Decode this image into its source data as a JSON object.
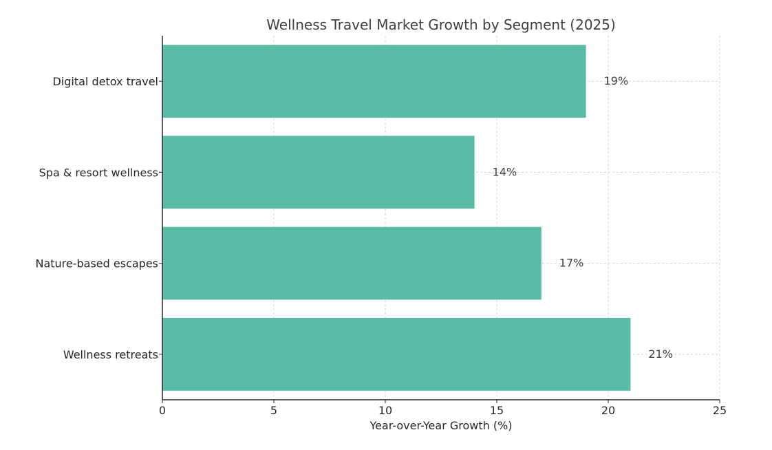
{
  "chart_data": {
    "type": "bar",
    "orientation": "horizontal",
    "title": "Wellness Travel Market Growth by Segment (2025)",
    "xlabel": "Year-over-Year Growth (%)",
    "ylabel": "",
    "categories": [
      "Wellness retreats",
      "Nature-based escapes",
      "Spa & resort wellness",
      "Digital detox travel"
    ],
    "values": [
      21,
      17,
      14,
      19
    ],
    "data_labels": [
      "21%",
      "17%",
      "14%",
      "19%"
    ],
    "xlim": [
      0,
      25
    ],
    "xticks": [
      0,
      5,
      10,
      15,
      20,
      25
    ],
    "xtick_labels": [
      "0",
      "5",
      "10",
      "15",
      "20",
      "25"
    ],
    "grid": true,
    "bar_color": "#59bca6",
    "grid_color": "#d0d0d0",
    "axis_color": "#262626"
  }
}
